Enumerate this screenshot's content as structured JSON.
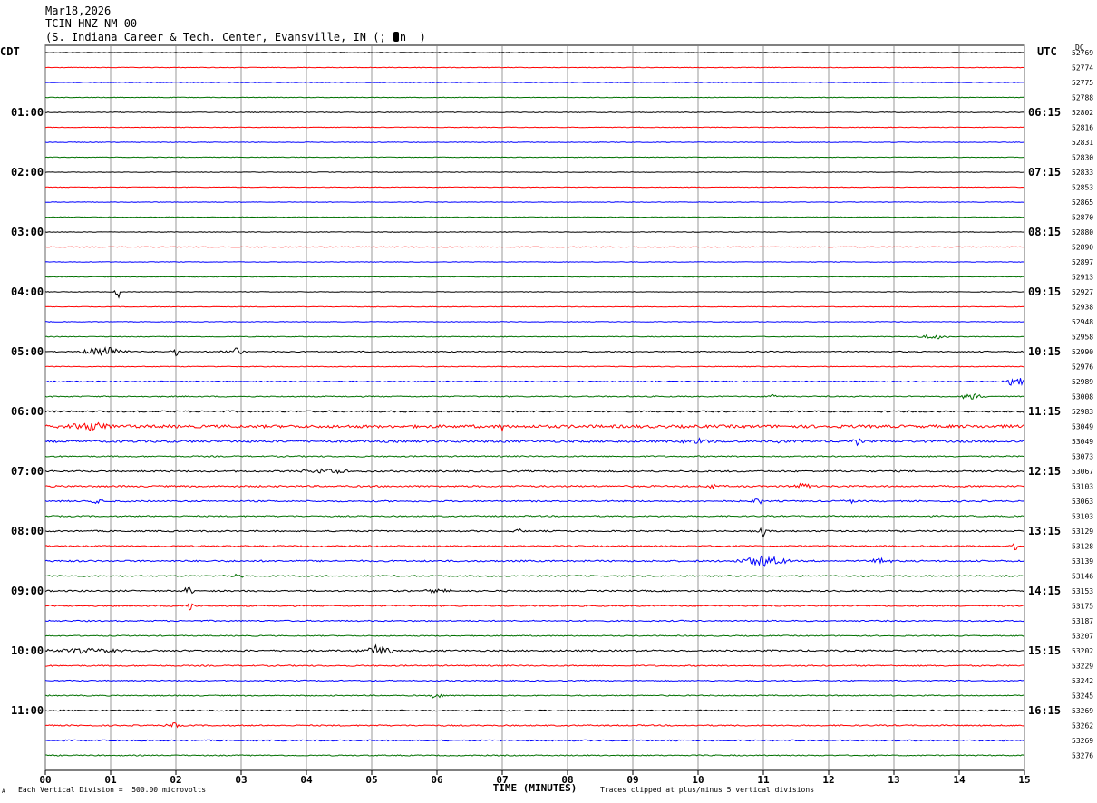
{
  "header": {
    "date": "Mar18,2026",
    "station": "TCIN HNZ NM 00",
    "location_prefix": "(S. Indiana Career & Tech. Center, Evansville, IN (;",
    "location_suffix": "n  )"
  },
  "left_axis_label": "CDT",
  "right_axis_label": "UTC",
  "dc_label": "DC",
  "footer": {
    "scale_note": "Each Vertical Division =  500.00 microvolts",
    "clip_note": "Traces clipped at plus/minus 5 vertical divisions",
    "corner_mark": "A"
  },
  "colors": {
    "trace_cycle": [
      "#000000",
      "#ff0000",
      "#0000ff",
      "#007000"
    ],
    "grid": "#808080"
  },
  "chart_data": {
    "type": "line",
    "title": "",
    "xlabel": "TIME (MINUTES)",
    "xlim": [
      0,
      15
    ],
    "x_ticks": [
      "00",
      "01",
      "02",
      "03",
      "04",
      "05",
      "06",
      "07",
      "08",
      "09",
      "10",
      "11",
      "12",
      "13",
      "14",
      "15"
    ],
    "left_ticks": [
      "01:00",
      "02:00",
      "03:00",
      "04:00",
      "05:00",
      "06:00",
      "07:00",
      "08:00",
      "09:00",
      "10:00",
      "11:00"
    ],
    "right_ticks": [
      "06:15",
      "07:15",
      "08:15",
      "09:15",
      "10:15",
      "11:15",
      "12:15",
      "13:15",
      "14:15",
      "15:15",
      "16:15"
    ],
    "dc_offsets": [
      "52769",
      "52774",
      "52775",
      "52788",
      "52802",
      "52816",
      "52831",
      "52830",
      "52833",
      "52853",
      "52865",
      "52870",
      "52880",
      "52890",
      "52897",
      "52913",
      "52927",
      "52938",
      "52948",
      "52958",
      "52990",
      "52976",
      "52989",
      "53008",
      "52983",
      "53049",
      "53049",
      "53073",
      "53067",
      "53103",
      "53063",
      "53103",
      "53129",
      "53128",
      "53139",
      "53146",
      "53153",
      "53175",
      "53187",
      "53207",
      "53202",
      "53229",
      "53242",
      "53245",
      "53269",
      "53262",
      "53269",
      "53276"
    ],
    "trace_noise": [
      0.3,
      0.3,
      0.35,
      0.3,
      0.4,
      0.35,
      0.35,
      0.3,
      0.3,
      0.3,
      0.3,
      0.3,
      0.35,
      0.3,
      0.3,
      0.3,
      0.3,
      0.35,
      0.35,
      0.4,
      0.6,
      0.45,
      0.6,
      0.6,
      0.9,
      1.6,
      1.2,
      0.7,
      0.9,
      0.9,
      0.8,
      0.7,
      0.8,
      0.7,
      0.9,
      0.7,
      0.8,
      0.7,
      0.7,
      0.6,
      0.9,
      0.7,
      0.6,
      0.6,
      0.7,
      0.7,
      0.7,
      0.6
    ],
    "events": [
      {
        "trace": 16,
        "minute": 1.1,
        "amp": 12,
        "dur": 0.05
      },
      {
        "trace": 19,
        "minute": 13.6,
        "amp": 3,
        "dur": 0.3
      },
      {
        "trace": 20,
        "minute": 0.9,
        "amp": 6,
        "dur": 0.5
      },
      {
        "trace": 20,
        "minute": 2.0,
        "amp": 5,
        "dur": 0.1
      },
      {
        "trace": 20,
        "minute": 2.9,
        "amp": 5,
        "dur": 0.25
      },
      {
        "trace": 22,
        "minute": 14.85,
        "amp": 6,
        "dur": 0.25
      },
      {
        "trace": 23,
        "minute": 11.15,
        "amp": 3,
        "dur": 0.1
      },
      {
        "trace": 23,
        "minute": 14.2,
        "amp": 4,
        "dur": 0.25
      },
      {
        "trace": 25,
        "minute": 0.7,
        "amp": 4,
        "dur": 0.6
      },
      {
        "trace": 25,
        "minute": 7.0,
        "amp": 5,
        "dur": 0.05
      },
      {
        "trace": 26,
        "minute": 10.0,
        "amp": 3,
        "dur": 0.3
      },
      {
        "trace": 26,
        "minute": 11.25,
        "amp": 4,
        "dur": 0.1
      },
      {
        "trace": 26,
        "minute": 12.45,
        "amp": 4,
        "dur": 0.1
      },
      {
        "trace": 28,
        "minute": 4.3,
        "amp": 3,
        "dur": 0.5
      },
      {
        "trace": 29,
        "minute": 10.2,
        "amp": 3,
        "dur": 0.1
      },
      {
        "trace": 29,
        "minute": 11.6,
        "amp": 4,
        "dur": 0.2
      },
      {
        "trace": 30,
        "minute": 0.8,
        "amp": 4,
        "dur": 0.15
      },
      {
        "trace": 30,
        "minute": 10.9,
        "amp": 4,
        "dur": 0.15
      },
      {
        "trace": 30,
        "minute": 12.3,
        "amp": 3,
        "dur": 0.15
      },
      {
        "trace": 32,
        "minute": 7.25,
        "amp": 3,
        "dur": 0.1
      },
      {
        "trace": 32,
        "minute": 11.0,
        "amp": 8,
        "dur": 0.1
      },
      {
        "trace": 33,
        "minute": 14.85,
        "amp": 9,
        "dur": 0.05
      },
      {
        "trace": 34,
        "minute": 11.0,
        "amp": 7,
        "dur": 0.5
      },
      {
        "trace": 34,
        "minute": 12.8,
        "amp": 4,
        "dur": 0.2
      },
      {
        "trace": 35,
        "minute": 2.9,
        "amp": 2,
        "dur": 0.2
      },
      {
        "trace": 36,
        "minute": 2.2,
        "amp": 7,
        "dur": 0.1
      },
      {
        "trace": 36,
        "minute": 6.0,
        "amp": 3,
        "dur": 0.3
      },
      {
        "trace": 37,
        "minute": 2.2,
        "amp": 6,
        "dur": 0.1
      },
      {
        "trace": 40,
        "minute": 0.6,
        "amp": 3,
        "dur": 0.8
      },
      {
        "trace": 40,
        "minute": 5.1,
        "amp": 6,
        "dur": 0.35
      },
      {
        "trace": 43,
        "minute": 6.0,
        "amp": 4,
        "dur": 0.15
      },
      {
        "trace": 45,
        "minute": 1.95,
        "amp": 4,
        "dur": 0.15
      }
    ]
  }
}
